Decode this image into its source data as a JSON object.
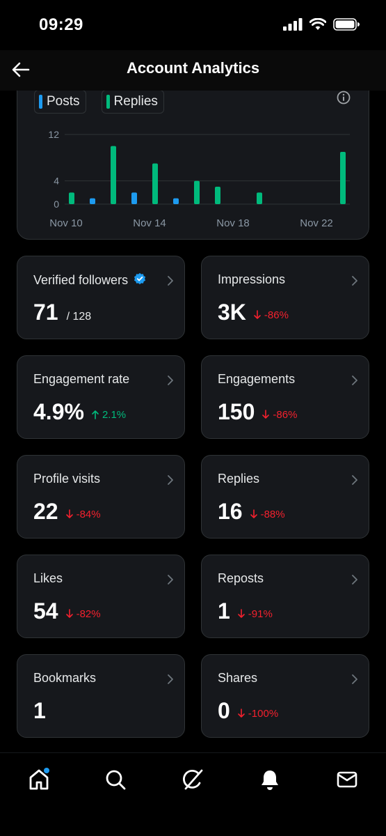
{
  "status_bar": {
    "time": "09:29"
  },
  "header": {
    "title": "Account Analytics"
  },
  "chart_data": {
    "type": "bar",
    "x": [
      "Nov 10",
      "Nov 11",
      "Nov 12",
      "Nov 13",
      "Nov 14",
      "Nov 15",
      "Nov 16",
      "Nov 17",
      "Nov 18",
      "Nov 19",
      "Nov 20",
      "Nov 21",
      "Nov 22",
      "Nov 23"
    ],
    "x_tick_labels": [
      "Nov 10",
      "Nov 14",
      "Nov 18",
      "Nov 22"
    ],
    "y_tick_labels": [
      "12",
      "4",
      "0"
    ],
    "ylim": [
      0,
      12
    ],
    "series": [
      {
        "name": "Posts",
        "color": "#1d9bf0",
        "values": [
          0,
          1,
          0,
          2,
          0,
          1,
          0,
          0,
          0,
          0,
          0,
          0,
          0,
          0
        ]
      },
      {
        "name": "Replies",
        "color": "#00ba7c",
        "values": [
          2,
          0,
          10,
          0,
          7,
          0,
          4,
          3,
          0,
          2,
          0,
          0,
          0,
          9
        ]
      }
    ],
    "grid": true,
    "legend_position": "top-left"
  },
  "tiles": [
    {
      "label": "Verified followers",
      "value": "71",
      "sub": "/ 128",
      "verified": true,
      "change": ""
    },
    {
      "label": "Impressions",
      "value": "3K",
      "change": "-86%",
      "direction": "down"
    },
    {
      "label": "Engagement rate",
      "value": "4.9%",
      "change": "2.1%",
      "direction": "up"
    },
    {
      "label": "Engagements",
      "value": "150",
      "change": "-86%",
      "direction": "down"
    },
    {
      "label": "Profile visits",
      "value": "22",
      "change": "-84%",
      "direction": "down"
    },
    {
      "label": "Replies",
      "value": "16",
      "change": "-88%",
      "direction": "down"
    },
    {
      "label": "Likes",
      "value": "54",
      "change": "-82%",
      "direction": "down"
    },
    {
      "label": "Reposts",
      "value": "1",
      "change": "-91%",
      "direction": "down"
    },
    {
      "label": "Bookmarks",
      "value": "1",
      "change": ""
    },
    {
      "label": "Shares",
      "value": "0",
      "change": "-100%",
      "direction": "down"
    }
  ],
  "bottom_nav": [
    "home-icon",
    "search-icon",
    "grok-icon",
    "notifications-icon",
    "messages-icon"
  ],
  "colors": {
    "accent": "#1d9bf0",
    "up": "#00ba7c",
    "down": "#f4212e"
  }
}
